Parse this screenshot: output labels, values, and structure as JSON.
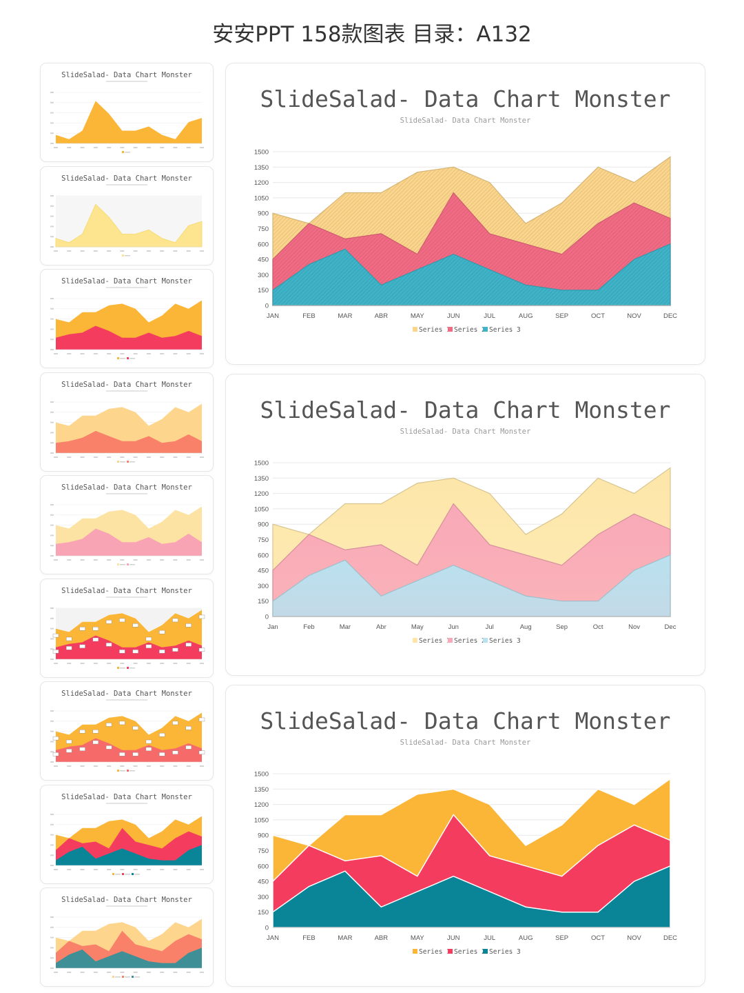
{
  "page": {
    "title": "安安PPT 158款图表 目录：A132"
  },
  "chart_data": [
    {
      "type": "area",
      "title": "SlideSalad- Data Chart Monster",
      "subtitle": "SlideSalad- Data Chart Monster",
      "categories": [
        "JAN",
        "FEB",
        "MAR",
        "ABR",
        "MAY",
        "JUN",
        "JUL",
        "AUG",
        "SEP",
        "OCT",
        "NOV",
        "DEC"
      ],
      "yticks": [
        "1500",
        "1350",
        "1200",
        "1050",
        "900",
        "750",
        "600",
        "450",
        "300",
        "150",
        "0"
      ],
      "ylim": [
        0,
        1500
      ],
      "series": [
        {
          "name": "Series 1",
          "values": [
            900,
            800,
            1100,
            1100,
            1300,
            1350,
            1200,
            800,
            1000,
            1350,
            1200,
            1450
          ]
        },
        {
          "name": "Series 2",
          "values": [
            450,
            800,
            650,
            700,
            500,
            1100,
            700,
            600,
            500,
            800,
            1000,
            850
          ]
        },
        {
          "name": "Series 3",
          "values": [
            150,
            400,
            550,
            200,
            350,
            500,
            350,
            200,
            150,
            150,
            450,
            600
          ]
        }
      ],
      "colors": [
        "#fbd58b",
        "#f26b84",
        "#3fb3c8"
      ],
      "style": "hatched",
      "legend_position": "bottom"
    },
    {
      "type": "area",
      "title": "SlideSalad- Data Chart Monster",
      "subtitle": "SlideSalad- Data Chart Monster",
      "categories": [
        "Jan",
        "Feb",
        "Mar",
        "Abr",
        "May",
        "Jun",
        "Jul",
        "Aug",
        "Sep",
        "Oct",
        "Nov",
        "Dec"
      ],
      "yticks": [
        "1500",
        "1350",
        "1200",
        "1050",
        "900",
        "750",
        "600",
        "450",
        "300",
        "150",
        "0"
      ],
      "ylim": [
        0,
        1500
      ],
      "series": [
        {
          "name": "Series 1",
          "values": [
            900,
            800,
            1100,
            1100,
            1300,
            1350,
            1200,
            800,
            1000,
            1350,
            1200,
            1450
          ]
        },
        {
          "name": "Series 2",
          "values": [
            450,
            800,
            650,
            700,
            500,
            1100,
            700,
            600,
            500,
            800,
            1000,
            850
          ]
        },
        {
          "name": "Series 3",
          "values": [
            150,
            400,
            550,
            200,
            350,
            500,
            350,
            200,
            150,
            150,
            450,
            600
          ]
        }
      ],
      "colors": [
        "#fde6a8",
        "#f9a9b8",
        "#b9e1ef"
      ],
      "style": "gradient",
      "legend_position": "bottom"
    },
    {
      "type": "area",
      "title": "SlideSalad- Data Chart Monster",
      "subtitle": "SlideSalad- Data Chart Monster",
      "categories": [
        "JAN",
        "FEB",
        "MAR",
        "ABR",
        "MAY",
        "JUN",
        "JUL",
        "AUG",
        "SEP",
        "OCT",
        "NOV",
        "DEC"
      ],
      "yticks": [
        "1500",
        "1350",
        "1200",
        "1050",
        "900",
        "750",
        "600",
        "450",
        "300",
        "150",
        "0"
      ],
      "ylim": [
        0,
        1500
      ],
      "series": [
        {
          "name": "Series 1",
          "values": [
            900,
            800,
            1100,
            1100,
            1300,
            1350,
            1200,
            800,
            1000,
            1350,
            1200,
            1450
          ]
        },
        {
          "name": "Series 2",
          "values": [
            450,
            800,
            650,
            700,
            500,
            1100,
            700,
            600,
            500,
            800,
            1000,
            850
          ]
        },
        {
          "name": "Series 3",
          "values": [
            150,
            400,
            550,
            200,
            350,
            500,
            350,
            200,
            150,
            150,
            450,
            600
          ]
        }
      ],
      "colors": [
        "#fbb637",
        "#f43c5f",
        "#0a8597"
      ],
      "style": "solid",
      "legend_position": "bottom"
    }
  ],
  "thumbnails": [
    {
      "title": "SlideSalad- Data Chart Monster",
      "variant": "single",
      "colors": [
        "#fbb637"
      ],
      "series": [
        {
          "values": [
            100,
            50,
            150,
            500,
            350,
            150,
            150,
            200,
            100,
            50,
            250,
            300
          ]
        }
      ]
    },
    {
      "title": "SlideSalad- Data Chart Monster",
      "variant": "single-light",
      "colors": [
        "#fde48f"
      ],
      "series": [
        {
          "values": [
            100,
            50,
            150,
            500,
            350,
            150,
            150,
            200,
            100,
            50,
            250,
            300
          ]
        }
      ]
    },
    {
      "title": "SlideSalad- Data Chart Monster",
      "variant": "double",
      "colors": [
        "#fbb637",
        "#f43c5f"
      ],
      "series": [
        {
          "values": [
            900,
            800,
            1100,
            1100,
            1300,
            1350,
            1200,
            800,
            1000,
            1350,
            1200,
            1450
          ]
        },
        {
          "values": [
            350,
            450,
            500,
            700,
            550,
            350,
            350,
            500,
            350,
            400,
            550,
            400
          ]
        }
      ]
    },
    {
      "title": "SlideSalad- Data Chart Monster",
      "variant": "double",
      "colors": [
        "#fdd58c",
        "#f9816a"
      ],
      "series": [
        {
          "values": [
            900,
            800,
            1100,
            1100,
            1300,
            1350,
            1200,
            800,
            1000,
            1350,
            1200,
            1450
          ]
        },
        {
          "values": [
            300,
            350,
            450,
            650,
            500,
            350,
            350,
            500,
            300,
            350,
            550,
            350
          ]
        }
      ]
    },
    {
      "title": "SlideSalad- Data Chart Monster",
      "variant": "double",
      "colors": [
        "#fde3a3",
        "#f9a4b4"
      ],
      "series": [
        {
          "values": [
            900,
            800,
            1100,
            1100,
            1300,
            1350,
            1200,
            800,
            1000,
            1350,
            1200,
            1450
          ]
        },
        {
          "values": [
            350,
            400,
            500,
            800,
            650,
            400,
            400,
            550,
            350,
            400,
            650,
            400
          ]
        }
      ]
    },
    {
      "title": "SlideSalad- Data Chart Monster",
      "variant": "double-labels",
      "colors": [
        "#fbb637",
        "#f43c5f"
      ],
      "series": [
        {
          "values": [
            900,
            800,
            1100,
            1100,
            1300,
            1350,
            1200,
            800,
            1000,
            1350,
            1200,
            1450
          ]
        },
        {
          "values": [
            350,
            450,
            500,
            700,
            550,
            350,
            350,
            500,
            350,
            400,
            550,
            400
          ]
        }
      ]
    },
    {
      "title": "SlideSalad- Data Chart Monster",
      "variant": "double-labels",
      "colors": [
        "#fbb637",
        "#f76a6a"
      ],
      "series": [
        {
          "values": [
            900,
            800,
            1100,
            1100,
            1300,
            1350,
            1200,
            800,
            1000,
            1350,
            1200,
            1450
          ]
        },
        {
          "values": [
            350,
            450,
            500,
            700,
            550,
            350,
            350,
            500,
            350,
            400,
            550,
            400
          ]
        }
      ]
    },
    {
      "title": "SlideSalad- Data Chart Monster",
      "variant": "triple",
      "colors": [
        "#fbb637",
        "#f43c5f",
        "#0a8597"
      ],
      "series": [
        {
          "values": [
            900,
            800,
            1100,
            1100,
            1300,
            1350,
            1200,
            800,
            1000,
            1350,
            1200,
            1450
          ]
        },
        {
          "values": [
            450,
            800,
            650,
            700,
            500,
            1100,
            700,
            600,
            500,
            800,
            1000,
            850
          ]
        },
        {
          "values": [
            150,
            400,
            550,
            200,
            350,
            500,
            350,
            200,
            150,
            150,
            450,
            600
          ]
        }
      ]
    },
    {
      "title": "SlideSalad- Data Chart Monster",
      "variant": "triple",
      "colors": [
        "#fdd58c",
        "#f9816a",
        "#3f8f96"
      ],
      "series": [
        {
          "values": [
            900,
            800,
            1100,
            1100,
            1300,
            1350,
            1200,
            800,
            1000,
            1350,
            1200,
            1450
          ]
        },
        {
          "values": [
            450,
            800,
            650,
            700,
            500,
            1100,
            700,
            600,
            500,
            800,
            1000,
            850
          ]
        },
        {
          "values": [
            150,
            400,
            550,
            200,
            350,
            500,
            350,
            200,
            150,
            150,
            450,
            600
          ]
        }
      ]
    }
  ]
}
